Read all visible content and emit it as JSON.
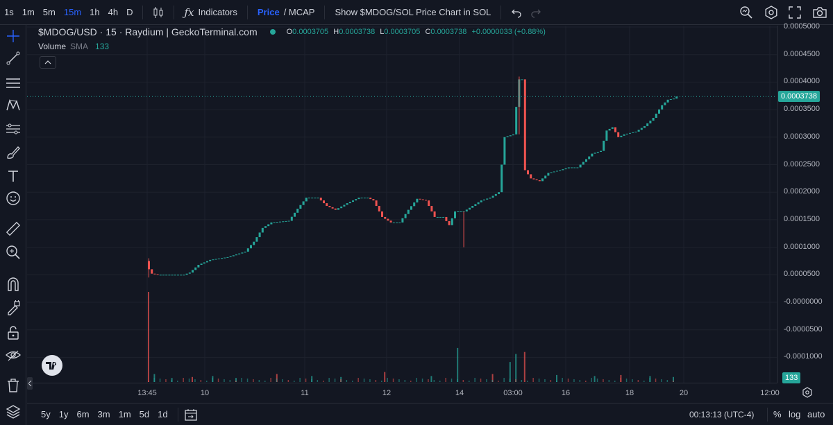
{
  "toolbar": {
    "timeframes": [
      "1s",
      "1m",
      "5m",
      "15m",
      "1h",
      "4h",
      "D"
    ],
    "active_timeframe": "15m",
    "indicators_label": "Indicators",
    "price_label": "Price",
    "mcap_label": "/ MCAP",
    "show_sol_label": "Show $MDOG/SOL Price Chart in SOL"
  },
  "legend": {
    "symbol": "$MDOG/USD · 15 · Raydium | GeckoTerminal.com",
    "o_label": "O",
    "o": "0.0003705",
    "h_label": "H",
    "h": "0.0003738",
    "l_label": "L",
    "l": "0.0003705",
    "c_label": "C",
    "c": "0.0003738",
    "change": "+0.0000033 (+0.88%)",
    "volume_label": "Volume",
    "sma_label": "SMA",
    "sma_value": "133"
  },
  "price_axis": {
    "labels": [
      "0.0005000",
      "0.0004500",
      "0.0004000",
      "0.0003500",
      "0.0003000",
      "0.0002500",
      "0.0002000",
      "0.0001500",
      "0.0001000",
      "0.0000500",
      "-0.0000000",
      "-0.0000500",
      "-0.0001000"
    ],
    "current_price": "0.0003738",
    "volume_badge": "133"
  },
  "time_axis": {
    "labels": [
      "13:45",
      "10",
      "11",
      "12",
      "14",
      "03:00",
      "16",
      "18",
      "20",
      "12:00"
    ]
  },
  "bottombar": {
    "ranges": [
      "5y",
      "1y",
      "6m",
      "3m",
      "1m",
      "5d",
      "1d"
    ],
    "clock": "00:13:13 (UTC-4)",
    "percent_label": "%",
    "log_label": "log",
    "auto_label": "auto"
  },
  "colors": {
    "up": "#26a69a",
    "down": "#ef5350",
    "accent": "#2962ff",
    "background": "#131722"
  },
  "chart_data": {
    "type": "candlestick",
    "title": "$MDOG/USD · 15 · Raydium | GeckoTerminal.com",
    "price_range": [
      -0.00012,
      0.00052
    ],
    "x_ticks": [
      "13:45",
      "10",
      "11",
      "12",
      "14",
      "03:00",
      "16",
      "18",
      "20",
      "12:00"
    ],
    "price_path": [
      [
        0,
        6e-05
      ],
      [
        1,
        5.2e-05
      ],
      [
        3,
        5e-05
      ],
      [
        12,
        5e-05
      ],
      [
        14,
        5.4e-05
      ],
      [
        17,
        6.8e-05
      ],
      [
        21,
        7.7e-05
      ],
      [
        27,
        8.2e-05
      ],
      [
        33,
        9.2e-05
      ],
      [
        36,
        0.00011
      ],
      [
        39,
        0.000135
      ],
      [
        42,
        0.000145
      ],
      [
        48,
        0.000148
      ],
      [
        51,
        0.00017
      ],
      [
        54,
        0.00019
      ],
      [
        58,
        0.00019
      ],
      [
        61,
        0.000175
      ],
      [
        64,
        0.000168
      ],
      [
        68,
        0.00018
      ],
      [
        72,
        0.00019
      ],
      [
        75,
        0.00019
      ],
      [
        77,
        0.000185
      ],
      [
        80,
        0.000155
      ],
      [
        83,
        0.000145
      ],
      [
        86,
        0.000145
      ],
      [
        89,
        0.000168
      ],
      [
        92,
        0.000188
      ],
      [
        95,
        0.000185
      ],
      [
        98,
        0.000155
      ],
      [
        101,
        0.000155
      ],
      [
        103,
        0.00014
      ],
      [
        105,
        0.000165
      ],
      [
        108,
        0.000165
      ],
      [
        111,
        0.000175
      ],
      [
        114,
        0.000185
      ],
      [
        117,
        0.00019
      ],
      [
        120,
        0.0002
      ],
      [
        122,
        0.0003
      ],
      [
        125,
        0.000305
      ],
      [
        127,
        0.000405
      ],
      [
        128,
        0.000405
      ],
      [
        129,
        0.00024
      ],
      [
        131,
        0.000225
      ],
      [
        134,
        0.00022
      ],
      [
        137,
        0.000235
      ],
      [
        141,
        0.00024
      ],
      [
        144,
        0.000245
      ],
      [
        147,
        0.000245
      ],
      [
        149,
        0.000255
      ],
      [
        152,
        0.00027
      ],
      [
        155,
        0.000275
      ],
      [
        157,
        0.000312
      ],
      [
        159,
        0.000318
      ],
      [
        161,
        0.0003
      ],
      [
        163,
        0.000305
      ],
      [
        167,
        0.00031
      ],
      [
        170,
        0.00032
      ],
      [
        173,
        0.000335
      ],
      [
        176,
        0.000358
      ],
      [
        178,
        0.000368
      ],
      [
        180,
        0.00037
      ],
      [
        181,
        0.0003738
      ]
    ],
    "volume_bars": [
      [
        0,
        9e-05
      ],
      [
        2,
        8e-06
      ],
      [
        8,
        4e-06
      ],
      [
        15,
        5e-06
      ],
      [
        22,
        6e-06
      ],
      [
        30,
        4e-06
      ],
      [
        44,
        8e-06
      ],
      [
        56,
        6e-06
      ],
      [
        66,
        5e-06
      ],
      [
        81,
        1e-05
      ],
      [
        97,
        6e-06
      ],
      [
        106,
        3.4e-05
      ],
      [
        118,
        8e-06
      ],
      [
        124,
        2e-05
      ],
      [
        126,
        2.8e-05
      ],
      [
        129,
        3e-05
      ],
      [
        140,
        7e-06
      ],
      [
        153,
        6e-06
      ],
      [
        162,
        7e-06
      ],
      [
        172,
        6e-06
      ],
      [
        180,
        5e-06
      ]
    ]
  }
}
